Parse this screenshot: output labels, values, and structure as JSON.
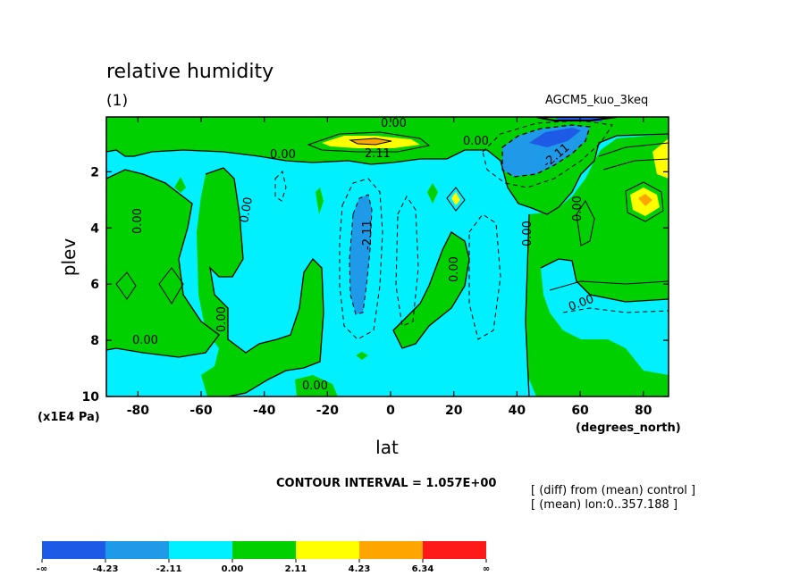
{
  "header": {
    "title": "relative humidity",
    "subtitle": "(1)",
    "model": "AGCM5_kuo_3keq"
  },
  "footer": {
    "contour_interval": "CONTOUR INTERVAL = 1.057E+00",
    "note_line1": "[ (diff) from (mean) control ]",
    "note_line2": "[ (mean) lon:0..357.188 ]"
  },
  "chart_data": {
    "type": "contour",
    "title": "relative humidity",
    "xlabel": "lat",
    "x_units": "(degrees_north)",
    "ylabel": "plev",
    "y_units": "(x1E4 Pa)",
    "xlim": [
      -90,
      88
    ],
    "ylim": [
      10,
      0.05
    ],
    "x_ticks": [
      "-80",
      "-60",
      "-40",
      "-20",
      "0",
      "20",
      "40",
      "60",
      "80"
    ],
    "y_ticks": [
      "2",
      "4",
      "6",
      "8",
      "10"
    ],
    "contour_interval": 1.057,
    "contour_labels": [
      "0.00",
      "2.11",
      "-2.11"
    ],
    "colorbar": {
      "labels": [
        "-∞",
        "-4.23",
        "-2.11",
        "0.00",
        "2.11",
        "4.23",
        "6.34",
        "∞"
      ],
      "colors": [
        "#1d5be6",
        "#1f9ae8",
        "#00f0ff",
        "#00d000",
        "#ffff00",
        "#ffa500",
        "#ff1a1a"
      ]
    },
    "colors": {
      "neg": "#00f0ff",
      "pos": "#00d000",
      "neg2": "#1f9ae8",
      "neg3": "#1d5be6",
      "pos2": "#ffff00",
      "pos3": "#ffa500"
    }
  }
}
